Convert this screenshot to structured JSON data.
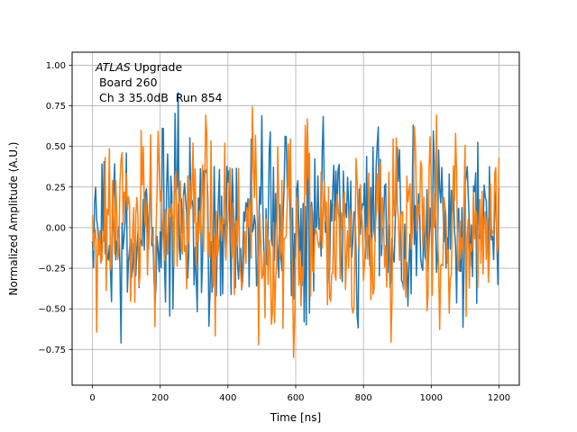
{
  "chart_data": {
    "type": "line",
    "xlabel": "Time [ns]",
    "ylabel": "Normalized Amplitude (A.U.)",
    "xlim": [
      -60,
      1260
    ],
    "ylim": [
      -0.97,
      1.08
    ],
    "xticks": [
      0,
      200,
      400,
      600,
      800,
      1000,
      1200
    ],
    "xtick_labels": [
      "0",
      "200",
      "400",
      "600",
      "800",
      "1000",
      "1200"
    ],
    "yticks": [
      -0.75,
      -0.5,
      -0.25,
      0.0,
      0.25,
      0.5,
      0.75,
      1.0
    ],
    "ytick_labels": [
      "−0.75",
      "−0.50",
      "−0.25",
      "0.00",
      "0.25",
      "0.50",
      "0.75",
      "1.00"
    ],
    "grid": true,
    "annotation": {
      "line1_italic": "ATLAS",
      "line1_rest": " Upgrade",
      "line2": " Board 260",
      "line3": " Ch 3 35.0dB  Run 854"
    },
    "series": [
      {
        "color": "#1f77b4",
        "x_start": 0,
        "x_step": 3.125,
        "sample_count": 385,
        "amplitude_range": [
          -0.87,
          0.86
        ],
        "description_values_note": "dense noise waveform"
      },
      {
        "color": "#ff7f0e",
        "x_start": 0,
        "x_step": 3.125,
        "sample_count": 385,
        "amplitude_range": [
          -0.86,
          0.85
        ],
        "description_values_note": "dense noise waveform"
      }
    ]
  }
}
